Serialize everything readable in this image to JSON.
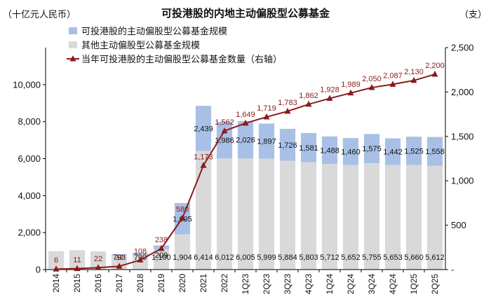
{
  "title": "可投港股的内地主动偏股型公募基金",
  "left_unit": "（十亿元人民币）",
  "right_unit": "（支）",
  "chart_data": {
    "type": "bar",
    "stacked": true,
    "title": "可投港股的内地主动偏股型公募基金",
    "categories": [
      "2014",
      "2015",
      "2016",
      "2017",
      "2018",
      "2019",
      "2020",
      "2021",
      "2022",
      "1Q23",
      "2Q23",
      "3Q23",
      "4Q23",
      "1Q24",
      "2Q24",
      "3Q24",
      "4Q24",
      "1Q25",
      "2Q25"
    ],
    "series": [
      {
        "name": "可投港股的主动偏股型公募基金规模",
        "axis": "left",
        "color": "#a9c0e6",
        "values": [
          6,
          11,
          22,
          37,
          108,
          209,
          1695,
          2439,
          1986,
          2026,
          1897,
          1726,
          1581,
          1488,
          1460,
          1575,
          1442,
          1525,
          1558
        ],
        "labels": [
          "",
          "",
          "",
          "",
          "",
          "209",
          "1,695",
          "2,439",
          "1,986",
          "2,026",
          "1,897",
          "1,726",
          "1,581",
          "1,488",
          "1,460",
          "1,575",
          "1,442",
          "1,525",
          "1,558"
        ]
      },
      {
        "name": "其他主动偏股型公募基金规模",
        "axis": "left",
        "color": "#d9d9d9",
        "values": [
          990,
          1030,
          950,
          793,
          790,
          1100,
          1904,
          6414,
          6012,
          6005,
          5999,
          5884,
          5803,
          5712,
          5652,
          5755,
          5653,
          5660,
          5612
        ],
        "labels": [
          "",
          "",
          "",
          "793",
          "790",
          "1,100",
          "1,904",
          "6,414",
          "6,012",
          "6,005",
          "5,999",
          "5,884",
          "5,803",
          "5,712",
          "5,652",
          "5,755",
          "5,653",
          "5,660",
          "5,612"
        ]
      },
      {
        "name": "当年可投港股的主动偏股型公募基金数量（右轴）",
        "axis": "right",
        "type": "line",
        "color": "#8b1a1a",
        "values": [
          6,
          11,
          22,
          37,
          108,
          238,
          580,
          1173,
          1562,
          1649,
          1719,
          1783,
          1862,
          1928,
          1989,
          2050,
          2087,
          2130,
          2200
        ],
        "labels": [
          "6",
          "11",
          "22",
          "37",
          "108",
          "238",
          "580",
          "1,173",
          "1,562",
          "1,649",
          "1,719",
          "1,783",
          "1,862",
          "1,928",
          "1,989",
          "2,050",
          "2,087",
          "2,130",
          "2,200"
        ]
      }
    ],
    "y_left": {
      "ylim": [
        0,
        12000
      ],
      "ticks": [
        0,
        2000,
        4000,
        6000,
        8000,
        10000
      ],
      "tick_labels": [
        "0",
        "2,000",
        "4,000",
        "6,000",
        "8,000",
        "10,000"
      ]
    },
    "y_right": {
      "ylim": [
        0,
        2500
      ],
      "ticks": [
        0,
        500,
        1000,
        1500,
        2000,
        2500
      ],
      "tick_labels": [
        "-",
        "500",
        "1,000",
        "1,500",
        "2,000",
        "2,500"
      ]
    },
    "legend_position": "top-left"
  }
}
